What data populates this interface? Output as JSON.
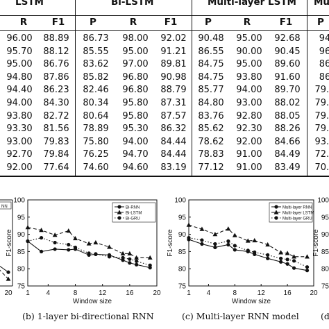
{
  "table": {
    "groups": [
      {
        "name": "LSTM",
        "cols": [
          "R",
          "F1"
        ]
      },
      {
        "name": "Bi-LSTM",
        "cols": [
          "P",
          "R",
          "F1"
        ]
      },
      {
        "name": "Multi-layer LSTM",
        "cols": [
          "P",
          "R",
          "F1"
        ]
      },
      {
        "name": "Mu",
        "cols": [
          "P"
        ]
      }
    ],
    "rows": [
      [
        "96.00",
        "88.89",
        "86.73",
        "98.00",
        "92.02",
        "90.48",
        "95.00",
        "92.68",
        "94"
      ],
      [
        "95.70",
        "88.12",
        "85.55",
        "95.00",
        "91.21",
        "86.55",
        "90.00",
        "90.45",
        "96"
      ],
      [
        "95.00",
        "86.76",
        "83.62",
        "97.00",
        "89.81",
        "84.75",
        "95.00",
        "89.60",
        "86"
      ],
      [
        "94.80",
        "87.86",
        "85.82",
        "96.80",
        "90.98",
        "84.75",
        "93.80",
        "91.60",
        "86"
      ],
      [
        "94.40",
        "86.23",
        "82.46",
        "96.80",
        "88.79",
        "85.77",
        "94.00",
        "89.70",
        "79.3"
      ],
      [
        "94.00",
        "84.30",
        "80.34",
        "95.80",
        "87.31",
        "84.80",
        "93.00",
        "88.02",
        "79.3"
      ],
      [
        "93.80",
        "82.72",
        "80.64",
        "95.80",
        "87.57",
        "83.76",
        "92.80",
        "88.05",
        "79.1"
      ],
      [
        "93.30",
        "81.56",
        "78.89",
        "95.30",
        "86.32",
        "85.62",
        "92.30",
        "88.26",
        "79.5"
      ],
      [
        "93.00",
        "79.83",
        "75.80",
        "94.00",
        "84.44",
        "78.62",
        "92.00",
        "84.66",
        "93.0"
      ],
      [
        "92.70",
        "79.84",
        "76.25",
        "94.70",
        "84.44",
        "78.83",
        "91.00",
        "84.49",
        "72.1"
      ],
      [
        "92.00",
        "77.64",
        "74.60",
        "94.60",
        "83.19",
        "77.12",
        "91.00",
        "83.49",
        "70.9"
      ]
    ]
  },
  "chart_data": [
    {
      "type": "line",
      "panel": "a-partial",
      "ylabel": "",
      "xlabel": "",
      "x": [
        18,
        20
      ],
      "xticks": [
        "20"
      ],
      "legend": [
        "NN"
      ],
      "series": [
        {
          "values": [
            81,
            79
          ]
        },
        {
          "values": [
            80,
            77
          ]
        }
      ]
    },
    {
      "type": "line",
      "panel": "b",
      "xlabel": "Window size",
      "ylabel": "F1-score",
      "ylim": [
        75,
        100
      ],
      "xlim": [
        1,
        20
      ],
      "xticks": [
        "1",
        "4",
        "8",
        "12",
        "16",
        "20"
      ],
      "yticks": [
        "75",
        "80",
        "85",
        "90",
        "95",
        "100"
      ],
      "legend_position": "top-right",
      "x": [
        1,
        3,
        5,
        7,
        8,
        10,
        11,
        13,
        15,
        16,
        17,
        19
      ],
      "series": [
        {
          "name": "Bi-RNN",
          "marker": "circle",
          "dash": "solid",
          "values": [
            88.0,
            85.0,
            85.7,
            85.5,
            85.7,
            84.0,
            84.2,
            84.0,
            82.5,
            81.7,
            81.2,
            80.3
          ]
        },
        {
          "name": "Bi-LSTM",
          "marker": "triangle",
          "dash": "dashed",
          "values": [
            92.0,
            91.2,
            89.8,
            91.0,
            88.8,
            87.3,
            87.6,
            86.3,
            84.4,
            84.4,
            83.2,
            83.2
          ]
        },
        {
          "name": "Bi-GRU",
          "marker": "circle",
          "dash": "dotted",
          "values": [
            88.0,
            89.0,
            87.6,
            87.0,
            86.2,
            84.5,
            84.3,
            83.5,
            83.2,
            82.8,
            82.2,
            81.0
          ]
        }
      ]
    },
    {
      "type": "line",
      "panel": "c",
      "xlabel": "Window size",
      "ylabel": "F1-score",
      "ylim": [
        75,
        100
      ],
      "xlim": [
        1,
        20
      ],
      "xticks": [
        "1",
        "4",
        "8",
        "12",
        "16",
        "20"
      ],
      "yticks": [
        "75",
        "80",
        "85",
        "90",
        "95",
        "100"
      ],
      "legend_position": "top-right",
      "x": [
        1,
        3,
        5,
        7,
        8,
        10,
        11,
        13,
        15,
        16,
        17,
        19
      ],
      "series": [
        {
          "name": "Multi-layer RNN",
          "marker": "circle",
          "dash": "solid",
          "values": [
            88.5,
            87.2,
            86.2,
            87.0,
            85.5,
            85.0,
            84.2,
            83.0,
            82.0,
            81.4,
            80.2,
            79.5
          ]
        },
        {
          "name": "Multi-layer LSTM",
          "marker": "triangle",
          "dash": "dashed",
          "values": [
            92.7,
            91.5,
            90.0,
            91.6,
            89.7,
            88.1,
            88.2,
            87.0,
            84.7,
            84.5,
            83.5,
            83.5
          ]
        },
        {
          "name": "Multi-layer GRU",
          "marker": "circle",
          "dash": "dotted",
          "values": [
            89.0,
            88.3,
            87.2,
            88.0,
            86.7,
            85.3,
            84.8,
            84.0,
            83.0,
            82.7,
            82.3,
            80.5
          ]
        }
      ]
    },
    {
      "type": "line",
      "panel": "d-partial",
      "ylabel": "F1-score",
      "yticks": [
        "100",
        "95",
        "90",
        "85",
        "80",
        "75"
      ],
      "series": []
    }
  ],
  "captions": {
    "b": "(b) 1-layer bi-directional RNN",
    "c": "(c) Multi-layer RNN model",
    "d": "(d"
  }
}
